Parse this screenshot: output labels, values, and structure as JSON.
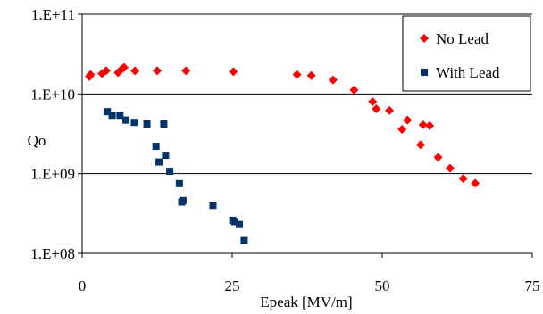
{
  "chart_data": {
    "type": "scatter",
    "xlabel": "Epeak  [MV/m]",
    "ylabel": "Qo",
    "xlim": [
      0,
      75
    ],
    "ylim": [
      100000000,
      100000000000
    ],
    "yscale": "log",
    "x_ticks": [
      {
        "value": 0,
        "label": "0"
      },
      {
        "value": 25,
        "label": "25"
      },
      {
        "value": 50,
        "label": "50"
      },
      {
        "value": 75,
        "label": "75"
      }
    ],
    "y_ticks": [
      {
        "value": 100000000,
        "label": "1.E+08"
      },
      {
        "value": 1000000000,
        "label": "1.E+09"
      },
      {
        "value": 10000000000,
        "label": "1.E+10"
      },
      {
        "value": 100000000000,
        "label": "1.E+11"
      }
    ],
    "grid": "horizontal",
    "legend_position": "top-right",
    "series": [
      {
        "name": "No Lead",
        "marker": "diamond",
        "color": "#ff0000",
        "points": [
          [
            1.2,
            16500000000.0
          ],
          [
            1.4,
            17500000000.0
          ],
          [
            3.3,
            18000000000.0
          ],
          [
            4.0,
            19500000000.0
          ],
          [
            6.0,
            18500000000.0
          ],
          [
            6.6,
            20500000000.0
          ],
          [
            7.0,
            21500000000.0
          ],
          [
            8.8,
            19500000000.0
          ],
          [
            12.5,
            19500000000.0
          ],
          [
            17.3,
            19500000000.0
          ],
          [
            25.2,
            19000000000.0
          ],
          [
            35.8,
            17500000000.0
          ],
          [
            38.2,
            17000000000.0
          ],
          [
            41.8,
            15000000000.0
          ],
          [
            45.3,
            11200000000.0
          ],
          [
            48.4,
            8000000000.0
          ],
          [
            49.0,
            6500000000.0
          ],
          [
            51.2,
            6200000000.0
          ],
          [
            53.3,
            3600000000.0
          ],
          [
            54.2,
            4700000000.0
          ],
          [
            56.4,
            2300000000.0
          ],
          [
            56.8,
            4100000000.0
          ],
          [
            57.9,
            4000000000.0
          ],
          [
            59.3,
            1600000000.0
          ],
          [
            61.3,
            1170000000.0
          ],
          [
            63.5,
            870000000.0
          ],
          [
            65.5,
            760000000.0
          ]
        ]
      },
      {
        "name": "With Lead",
        "marker": "square",
        "color": "#003366",
        "points": [
          [
            4.2,
            6000000000.0
          ],
          [
            5.0,
            5400000000.0
          ],
          [
            6.3,
            5400000000.0
          ],
          [
            7.3,
            4700000000.0
          ],
          [
            8.7,
            4400000000.0
          ],
          [
            10.8,
            4200000000.0
          ],
          [
            13.6,
            4200000000.0
          ],
          [
            12.3,
            2200000000.0
          ],
          [
            13.9,
            1700000000.0
          ],
          [
            12.8,
            1400000000.0
          ],
          [
            14.6,
            1070000000.0
          ],
          [
            16.2,
            750000000.0
          ],
          [
            16.6,
            440000000.0
          ],
          [
            16.8,
            460000000.0
          ],
          [
            21.8,
            400000000.0
          ],
          [
            25.1,
            260000000.0
          ],
          [
            25.4,
            250000000.0
          ],
          [
            26.2,
            230000000.0
          ],
          [
            27.0,
            145000000.0
          ]
        ]
      }
    ]
  }
}
